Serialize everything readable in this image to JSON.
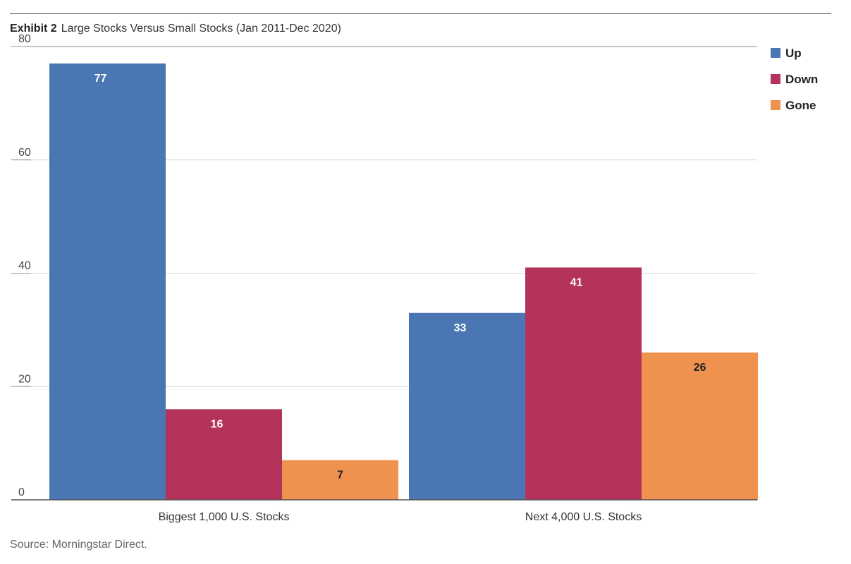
{
  "header": {
    "exhibit": "Exhibit 2",
    "title": "Large Stocks Versus Small Stocks (Jan 2011-Dec 2020)"
  },
  "footer": {
    "source": "Source: Morningstar Direct."
  },
  "colors": {
    "Up": "#4a76b3",
    "Down": "#b3335a",
    "Gone": "#ef914f",
    "label_on_dark": "#ffffff",
    "label_on_light": "#222222",
    "grid": "#d9d9d9"
  },
  "chart_data": {
    "type": "bar",
    "categories": [
      "Biggest 1,000 U.S. Stocks",
      "Next 4,000 U.S. Stocks"
    ],
    "series": [
      {
        "name": "Up",
        "values": [
          77,
          33
        ]
      },
      {
        "name": "Down",
        "values": [
          16,
          41
        ]
      },
      {
        "name": "Gone",
        "values": [
          7,
          26
        ]
      }
    ],
    "ylim": [
      0,
      80
    ],
    "yticks": [
      0,
      20,
      40,
      60,
      80
    ],
    "grid": true,
    "legend": "top-right",
    "data_labels": true
  }
}
